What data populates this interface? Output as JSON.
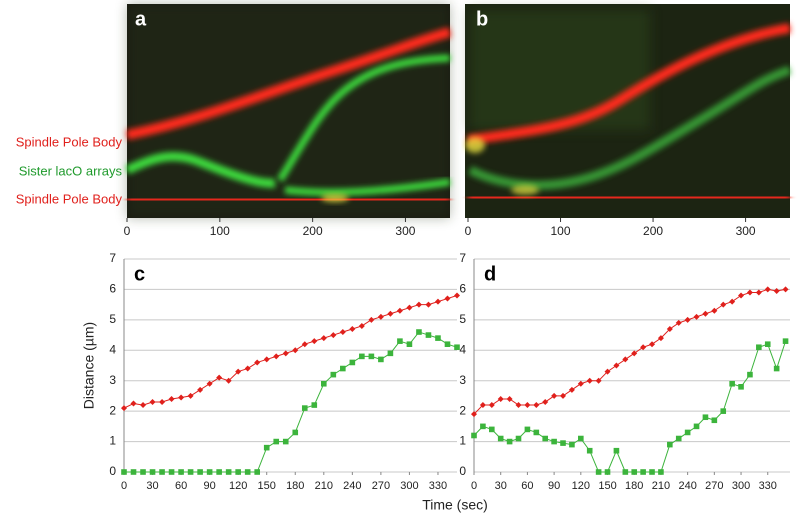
{
  "xlabel": "Time (sec)",
  "chart_data": [
    {
      "type": "kymograph",
      "panel_label": "a",
      "xlim": [
        0,
        348
      ],
      "xticks": [
        0,
        100,
        200,
        300
      ],
      "track_labels": [
        {
          "text": "Spindle Pole Body",
          "color": "#e0201c"
        },
        {
          "text": "Sister lacO arrays",
          "color": "#1f9a2c"
        },
        {
          "text": "Spindle Pole Body",
          "color": "#e0201c"
        }
      ]
    },
    {
      "type": "kymograph",
      "panel_label": "b",
      "xlim": [
        0,
        348
      ],
      "xticks": [
        0,
        100,
        200,
        300
      ]
    },
    {
      "type": "line",
      "panel_label": "c",
      "ylabel": "Distance (µm)",
      "x": [
        0,
        10,
        20,
        30,
        40,
        50,
        60,
        70,
        80,
        90,
        100,
        110,
        120,
        130,
        140,
        150,
        160,
        170,
        180,
        190,
        200,
        210,
        220,
        230,
        240,
        250,
        260,
        270,
        280,
        290,
        300,
        310,
        320,
        330,
        340,
        350
      ],
      "xlim": [
        0,
        350
      ],
      "xticks": [
        0,
        30,
        60,
        90,
        120,
        150,
        180,
        210,
        240,
        270,
        300,
        330
      ],
      "ylim": [
        0,
        7
      ],
      "yticks": [
        0,
        1,
        2,
        3,
        4,
        5,
        6,
        7
      ],
      "grid": true,
      "series": [
        {
          "color": "#e0201c",
          "marker": "diamond",
          "values": [
            2.1,
            2.25,
            2.2,
            2.3,
            2.3,
            2.4,
            2.45,
            2.5,
            2.7,
            2.9,
            3.1,
            3.0,
            3.3,
            3.4,
            3.6,
            3.7,
            3.8,
            3.9,
            4.0,
            4.2,
            4.3,
            4.4,
            4.5,
            4.6,
            4.7,
            4.8,
            5.0,
            5.1,
            5.2,
            5.3,
            5.4,
            5.5,
            5.5,
            5.6,
            5.7,
            5.8
          ]
        },
        {
          "color": "#3cb43c",
          "marker": "square",
          "values": [
            0,
            0,
            0,
            0,
            0,
            0,
            0,
            0,
            0,
            0,
            0,
            0,
            0,
            0,
            0,
            0.8,
            1.0,
            1.0,
            1.3,
            2.1,
            2.2,
            2.9,
            3.2,
            3.4,
            3.6,
            3.8,
            3.8,
            3.7,
            3.9,
            4.3,
            4.2,
            4.6,
            4.5,
            4.4,
            4.2,
            4.1
          ]
        }
      ]
    },
    {
      "type": "line",
      "panel_label": "d",
      "x": [
        0,
        10,
        20,
        30,
        40,
        50,
        60,
        70,
        80,
        90,
        100,
        110,
        120,
        130,
        140,
        150,
        160,
        170,
        180,
        190,
        200,
        210,
        220,
        230,
        240,
        250,
        260,
        270,
        280,
        290,
        300,
        310,
        320,
        330,
        340,
        350
      ],
      "xlim": [
        0,
        355
      ],
      "xticks": [
        0,
        30,
        60,
        90,
        120,
        150,
        180,
        210,
        240,
        270,
        300,
        330
      ],
      "ylim": [
        0,
        7
      ],
      "yticks": [
        0,
        1,
        2,
        3,
        4,
        5,
        6,
        7
      ],
      "grid": true,
      "series": [
        {
          "color": "#e0201c",
          "marker": "diamond",
          "values": [
            1.9,
            2.2,
            2.2,
            2.4,
            2.4,
            2.2,
            2.2,
            2.2,
            2.3,
            2.5,
            2.5,
            2.7,
            2.9,
            3.0,
            3.0,
            3.3,
            3.5,
            3.7,
            3.9,
            4.1,
            4.2,
            4.4,
            4.7,
            4.9,
            5.0,
            5.1,
            5.2,
            5.3,
            5.5,
            5.6,
            5.8,
            5.9,
            5.9,
            6.0,
            5.95,
            6.0
          ]
        },
        {
          "color": "#3cb43c",
          "marker": "square",
          "values": [
            1.2,
            1.5,
            1.4,
            1.1,
            1.0,
            1.1,
            1.4,
            1.3,
            1.1,
            1.0,
            0.95,
            0.9,
            1.1,
            0.7,
            0,
            0,
            0.7,
            0,
            0,
            0,
            0,
            0,
            0.9,
            1.1,
            1.3,
            1.5,
            1.8,
            1.7,
            2.0,
            2.9,
            2.8,
            3.2,
            4.1,
            4.2,
            3.4,
            4.3
          ]
        }
      ]
    }
  ]
}
